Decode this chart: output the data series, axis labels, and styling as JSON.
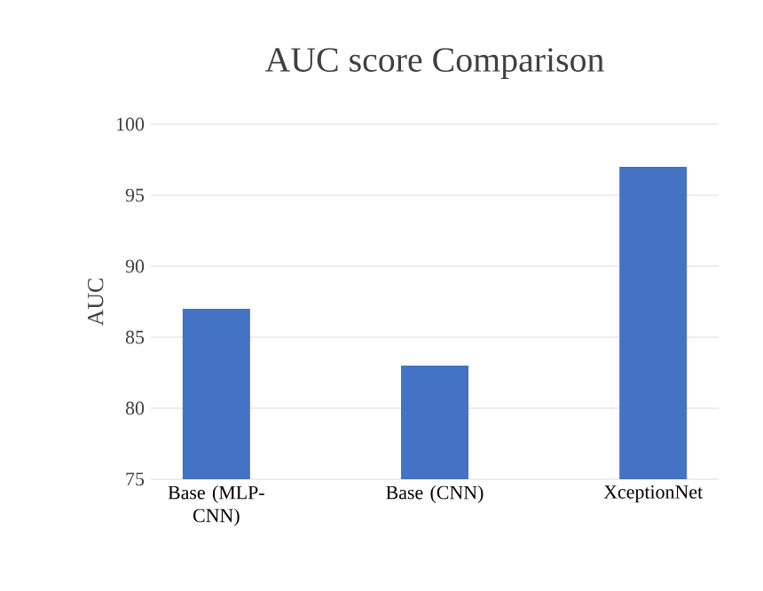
{
  "chart_data": {
    "type": "bar",
    "title": "AUC score Comparison",
    "ylabel": "AUC",
    "categories": [
      "Base (MLP-CNN)",
      "Base (CNN)",
      "XceptionNet"
    ],
    "values": [
      87,
      83,
      97
    ],
    "color": "#4472c4",
    "ylim": [
      75,
      100
    ],
    "yticks": [
      75,
      80,
      85,
      90,
      95,
      100
    ],
    "grid": "y"
  }
}
